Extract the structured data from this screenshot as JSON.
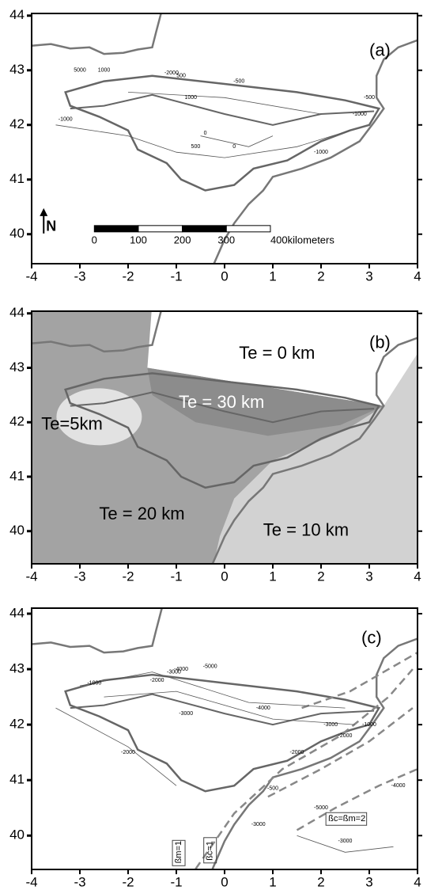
{
  "panels": [
    {
      "label": "(a)",
      "xlim": [
        -4,
        4
      ],
      "ylim": [
        39.46,
        44.04
      ],
      "xticks": [
        -4,
        -3,
        -2,
        -1,
        0,
        1,
        2,
        3,
        4
      ],
      "yticks": [
        40,
        41,
        42,
        43,
        44
      ],
      "north": "N",
      "scale_bar": [
        0,
        100,
        200,
        300,
        {
          "value": 400,
          "label": "400kilometers"
        }
      ],
      "contour_labels": [
        5000,
        1000,
        -1000,
        1000,
        500,
        -2000,
        -500,
        500,
        0,
        -500,
        -1000,
        -1000,
        0
      ]
    },
    {
      "label": "(b)",
      "xlim": [
        -4,
        4
      ],
      "ylim": [
        39.4,
        44.04
      ],
      "xticks": [
        -4,
        -3,
        -2,
        -1,
        0,
        1,
        2,
        3,
        4
      ],
      "yticks": [
        40,
        41,
        42,
        43,
        44
      ],
      "zones": [
        "Te = 0 km",
        "Te = 30 km",
        "Te=5km",
        "Te = 20 km",
        "Te = 10 km"
      ]
    },
    {
      "label": "(c)",
      "xlim": [
        -4,
        4
      ],
      "ylim": [
        39.39,
        44.1
      ],
      "xticks": [
        -4,
        -3,
        -2,
        -1,
        0,
        1,
        2,
        3,
        4
      ],
      "yticks": [
        40,
        41,
        42,
        43,
        44
      ],
      "boxes": [
        "ßm=1",
        "ßc=1",
        "ßc=ßm=2"
      ],
      "contour_labels": [
        -1000,
        -2000,
        -3000,
        -4000,
        -5000,
        -2000,
        -3000,
        -4000,
        -3000,
        -2000,
        -1000,
        -500,
        -2000,
        -3000,
        -5000,
        -4000,
        -3000
      ]
    }
  ]
}
